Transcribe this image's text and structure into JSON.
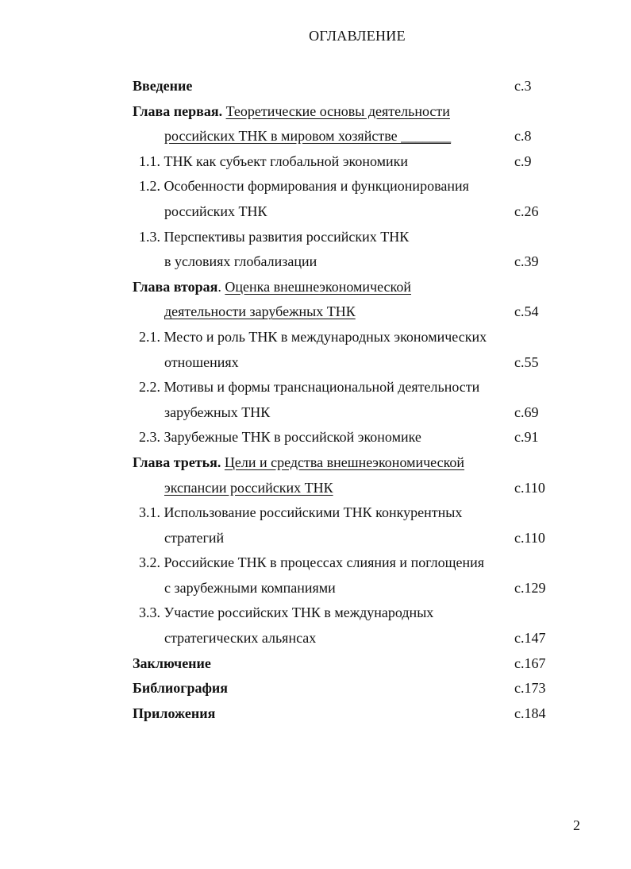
{
  "title": "ОГЛАВЛЕНИЕ",
  "rows": [
    {
      "type": "head",
      "bold": "Введение",
      "text": "",
      "underline": false,
      "page": "с.3"
    },
    {
      "type": "head",
      "bold": "Глава первая.",
      "text": "Теоретические основы деятельности",
      "underline": true,
      "page": ""
    },
    {
      "type": "cont",
      "text": "российских ТНК в мировом хозяйстве _______",
      "underline": true,
      "page": "с.8"
    },
    {
      "type": "item",
      "text": "1.1. ТНК как субъект глобальной экономики",
      "page": "с.9"
    },
    {
      "type": "item",
      "text": "1.2. Особенности формирования и функционирования",
      "page": ""
    },
    {
      "type": "cont",
      "text": "российских ТНК",
      "page": "с.26"
    },
    {
      "type": "item",
      "text": "1.3. Перспективы развития российских ТНК",
      "page": ""
    },
    {
      "type": "cont",
      "text": "в условиях глобализации",
      "page": "с.39"
    },
    {
      "type": "head",
      "bold": "Глава вторая",
      "text": "Оценка внешнеэкономической",
      "sep": ". ",
      "underline": true,
      "page": ""
    },
    {
      "type": "cont",
      "text": "деятельности зарубежных ТНК",
      "underline": true,
      "page": "с.54"
    },
    {
      "type": "item",
      "text": "2.1. Место и роль ТНК в международных экономических",
      "page": ""
    },
    {
      "type": "cont",
      "text": "отношениях",
      "page": "с.55"
    },
    {
      "type": "item",
      "text": "2.2. Мотивы и формы транснациональной деятельности",
      "page": ""
    },
    {
      "type": "cont",
      "text": "зарубежных ТНК",
      "page": "с.69"
    },
    {
      "type": "item",
      "text": "2.3. Зарубежные ТНК в российской экономике",
      "page": "с.91"
    },
    {
      "type": "head",
      "bold": "Глава третья.",
      "text": "Цели и средства внешнеэкономической",
      "underline": true,
      "page": ""
    },
    {
      "type": "cont",
      "text": "экспансии российских ТНК",
      "underline": true,
      "page": "с.110"
    },
    {
      "type": "item",
      "text": "3.1. Использование российскими ТНК конкурентных",
      "page": ""
    },
    {
      "type": "cont",
      "text": "стратегий",
      "page": "с.110"
    },
    {
      "type": "item",
      "text": "3.2. Российские ТНК в процессах слияния и поглощения",
      "page": ""
    },
    {
      "type": "cont",
      "text": "с зарубежными компаниями",
      "page": "с.129"
    },
    {
      "type": "item",
      "text": "3.3. Участие российских ТНК в международных",
      "page": ""
    },
    {
      "type": "cont",
      "text": "стратегических альянсах",
      "page": "с.147"
    },
    {
      "type": "head",
      "bold": "Заключение",
      "text": "",
      "underline": false,
      "page": "с.167"
    },
    {
      "type": "head",
      "bold": "Библиография",
      "text": "",
      "underline": false,
      "page": "с.173"
    },
    {
      "type": "head",
      "bold": "Приложения",
      "text": "",
      "underline": false,
      "page": "с.184"
    }
  ],
  "page_number": "2"
}
